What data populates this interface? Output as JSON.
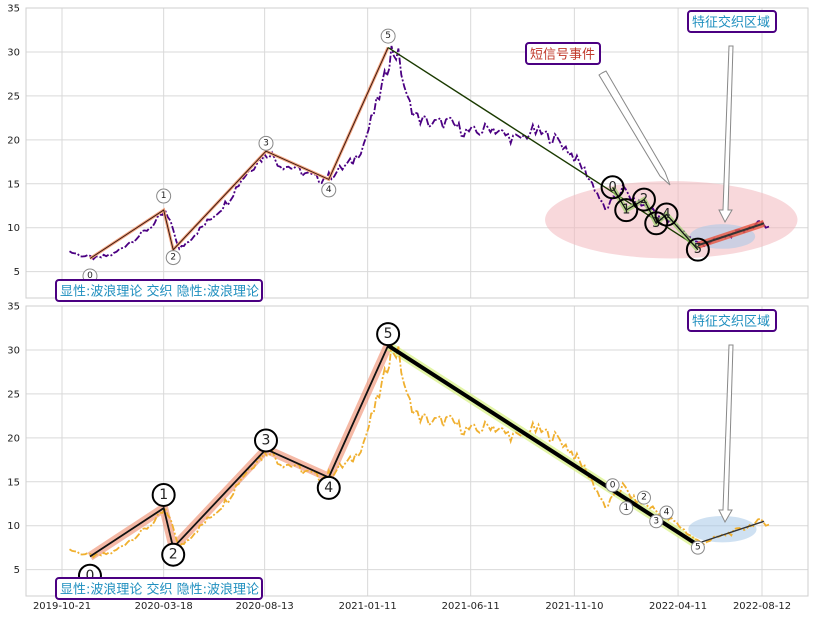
{
  "chart_data": [
    {
      "type": "line",
      "panel": "top",
      "title": "",
      "xlabel": "",
      "ylabel": "",
      "ylim": [
        2,
        35
      ],
      "yticks": [
        5,
        10,
        15,
        20,
        25,
        30,
        35
      ],
      "grid": true,
      "series_color": "#4b0082",
      "series": {
        "x": [
          "2019-11-01",
          "2019-11-20",
          "2019-12-10",
          "2020-01-05",
          "2020-01-25",
          "2020-02-15",
          "2020-03-05",
          "2020-03-20",
          "2020-04-01",
          "2020-04-10",
          "2020-04-20",
          "2020-05-10",
          "2020-06-01",
          "2020-06-20",
          "2020-07-10",
          "2020-08-01",
          "2020-08-20",
          "2020-09-05",
          "2020-09-25",
          "2020-10-15",
          "2020-11-01",
          "2020-11-15",
          "2020-12-05",
          "2020-12-20",
          "2021-01-05",
          "2021-01-20",
          "2021-02-05",
          "2021-02-15",
          "2021-02-25",
          "2021-03-10",
          "2021-03-25",
          "2021-04-15",
          "2021-05-10",
          "2021-06-01",
          "2021-06-20",
          "2021-07-10",
          "2021-08-01",
          "2021-08-20",
          "2021-09-10",
          "2021-10-01",
          "2021-10-20",
          "2021-11-10",
          "2021-11-25",
          "2021-12-10",
          "2021-12-25",
          "2022-01-10",
          "2022-01-20",
          "2022-02-05",
          "2022-02-20",
          "2022-03-05",
          "2022-03-20",
          "2022-04-05",
          "2022-04-20",
          "2022-05-05",
          "2022-05-15",
          "2022-06-01",
          "2022-06-20",
          "2022-07-10",
          "2022-07-25",
          "2022-08-10",
          "2022-08-25"
        ],
        "y": [
          7.3,
          6.8,
          6.5,
          7.0,
          8.2,
          9.3,
          10.5,
          11.8,
          9.8,
          7.5,
          8.3,
          9.8,
          11.5,
          13.0,
          15.5,
          17.5,
          18.6,
          17.2,
          16.8,
          16.0,
          15.5,
          15.8,
          16.8,
          17.5,
          19.5,
          23.0,
          27.0,
          30.2,
          29.5,
          24.5,
          22.5,
          21.8,
          22.0,
          21.0,
          20.8,
          21.5,
          20.5,
          20.0,
          21.0,
          20.5,
          19.8,
          18.0,
          16.5,
          14.5,
          12.0,
          13.5,
          14.5,
          13.0,
          12.5,
          12.0,
          11.0,
          10.5,
          9.5,
          8.5,
          8.0,
          8.5,
          9.0,
          9.5,
          10.0,
          10.5,
          10.2
        ]
      },
      "wave": {
        "labels": [
          "0",
          "1",
          "2",
          "3",
          "4",
          "5"
        ],
        "x": [
          "2019-12-01",
          "2020-03-18",
          "2020-04-01",
          "2020-08-15",
          "2020-11-15",
          "2021-02-10"
        ],
        "y": [
          6.5,
          12.0,
          7.5,
          18.7,
          15.5,
          30.5
        ],
        "label_y": [
          4.5,
          13.6,
          6.6,
          19.6,
          14.3,
          31.8
        ],
        "trend_end": {
          "x": "2022-05-10",
          "y": 7.8
        }
      },
      "short_signal": {
        "labels": [
          "0",
          "1",
          "2",
          "3",
          "4",
          "5"
        ],
        "x": [
          "2022-01-05",
          "2022-01-25",
          "2022-02-20",
          "2022-03-10",
          "2022-03-25",
          "2022-05-10"
        ],
        "y": [
          14.6,
          12.0,
          13.2,
          10.5,
          11.5,
          7.5
        ]
      },
      "feature_region": {
        "x": [
          "2022-05-10",
          "2022-08-15"
        ],
        "y": [
          8.0,
          10.5
        ]
      },
      "ellipses": [
        {
          "cx": "2022-04-01",
          "cy": 10.9,
          "rx_days": 185,
          "ry": 4.4,
          "color": "#f2b8be"
        },
        {
          "cx": "2022-06-15",
          "cy": 9.0,
          "rx_days": 48,
          "ry": 1.4,
          "color": "#a8c8e8"
        }
      ],
      "annotations": [
        {
          "text": "显性:波浪理论 交织 隐性:波浪理论",
          "color": "#1f8fbf"
        },
        {
          "text": "短信号事件",
          "color": "#c0392b"
        },
        {
          "text": "特征交织区域",
          "color": "#1f8fbf"
        }
      ]
    },
    {
      "type": "line",
      "panel": "bottom",
      "title": "",
      "xlabel": "",
      "ylabel": "",
      "ylim": [
        2,
        35
      ],
      "yticks": [
        5,
        10,
        15,
        20,
        25,
        30,
        35
      ],
      "xticks": [
        "2019-10-21",
        "2020-03-18",
        "2020-08-13",
        "2021-01-11",
        "2021-06-11",
        "2021-11-10",
        "2022-04-11",
        "2022-08-12"
      ],
      "grid": true,
      "series_color": "#f0b030",
      "wave": {
        "labels": [
          "0",
          "1",
          "2",
          "3",
          "4",
          "5"
        ],
        "x": [
          "2019-12-01",
          "2020-03-18",
          "2020-04-01",
          "2020-08-15",
          "2020-11-15",
          "2021-02-10"
        ],
        "y": [
          6.5,
          12.0,
          7.5,
          18.7,
          15.5,
          30.5
        ],
        "label_y": [
          4.3,
          13.5,
          6.7,
          19.7,
          14.3,
          31.8
        ],
        "trend_end": {
          "x": "2022-05-10",
          "y": 7.8
        }
      },
      "short_signal": {
        "labels": [
          "0",
          "1",
          "2",
          "3",
          "4",
          "5"
        ],
        "x": [
          "2022-01-05",
          "2022-01-25",
          "2022-02-20",
          "2022-03-10",
          "2022-03-25",
          "2022-05-10"
        ],
        "y": [
          14.6,
          12.0,
          13.2,
          10.5,
          11.5,
          7.5
        ]
      },
      "feature_region": {
        "x": [
          "2022-05-10",
          "2022-08-15"
        ],
        "y": [
          8.0,
          10.5
        ]
      },
      "ellipses": [
        {
          "cx": "2022-06-15",
          "cy": 9.6,
          "rx_days": 50,
          "ry": 1.5,
          "color": "#a8c8e8"
        }
      ],
      "annotations": [
        {
          "text": "显性:波浪理论 交织 隐性:波浪理论",
          "color": "#1f8fbf"
        },
        {
          "text": "特征交织区域",
          "color": "#1f8fbf"
        }
      ]
    }
  ]
}
